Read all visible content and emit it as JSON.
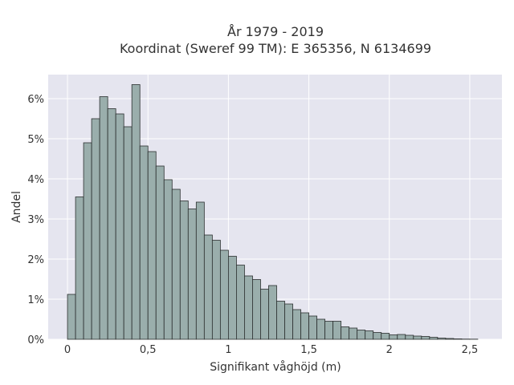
{
  "chart_data": {
    "type": "bar",
    "title": "År 1979 - 2019",
    "subtitle": "Koordinat (Sweref 99 TM): E 365356, N 6134699",
    "xlabel": "Signifikant våghöjd (m)",
    "ylabel": "Andel",
    "xlim": [
      -0.12,
      2.7
    ],
    "ylim": [
      0,
      6.6
    ],
    "x_ticks": [
      0,
      0.5,
      1,
      1.5,
      2,
      2.5
    ],
    "x_tick_labels": [
      "0",
      "0,5",
      "1",
      "1,5",
      "2",
      "2,5"
    ],
    "y_ticks": [
      0,
      1,
      2,
      3,
      4,
      5,
      6
    ],
    "y_tick_labels": [
      "0%",
      "1%",
      "2%",
      "3%",
      "4%",
      "5%",
      "6%"
    ],
    "bin_width": 0.05,
    "bin_start": 0.0,
    "values": [
      1.12,
      3.55,
      4.9,
      5.5,
      6.05,
      5.75,
      5.62,
      5.3,
      6.35,
      4.82,
      4.68,
      4.32,
      3.98,
      3.74,
      3.45,
      3.25,
      3.42,
      2.6,
      2.47,
      2.22,
      2.07,
      1.85,
      1.58,
      1.49,
      1.25,
      1.34,
      0.95,
      0.88,
      0.74,
      0.66,
      0.58,
      0.5,
      0.45,
      0.45,
      0.31,
      0.28,
      0.23,
      0.21,
      0.17,
      0.15,
      0.11,
      0.12,
      0.1,
      0.08,
      0.07,
      0.05,
      0.03,
      0.02,
      0.01,
      0.005,
      0.003
    ],
    "grid": true,
    "colors": {
      "background": "#e5e5ef",
      "grid": "#ffffff",
      "bar_fill": "#9aaeac",
      "bar_stroke": "#2b2f2f",
      "text": "#333333"
    }
  }
}
